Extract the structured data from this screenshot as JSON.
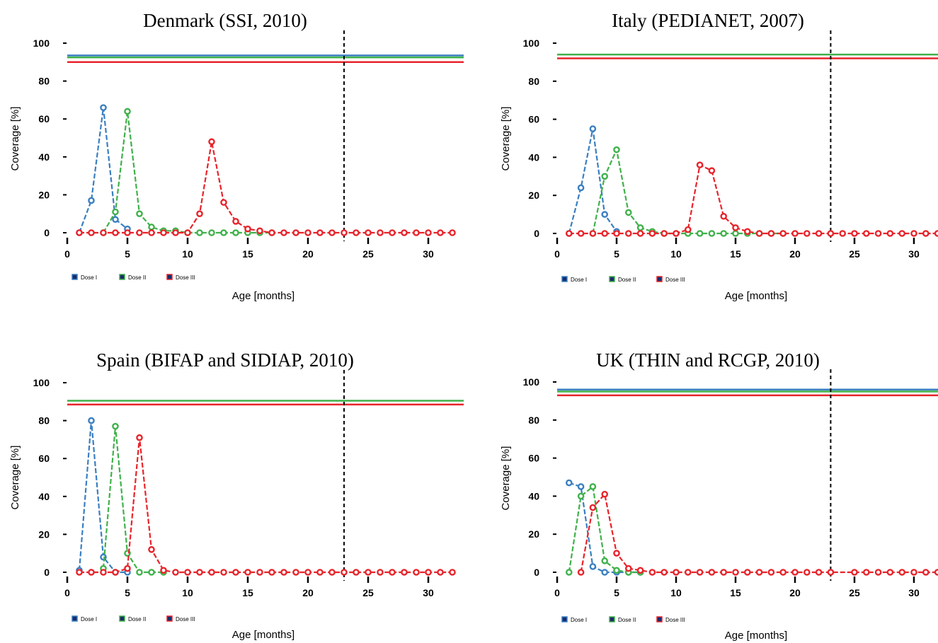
{
  "colors": {
    "dose1": "#3a7fc1",
    "dose2": "#3fb14a",
    "dose3": "#e8232a"
  },
  "chart_data": [
    {
      "type": "line",
      "title": "Denmark (SSI, 2010)",
      "xlabel": "Age [months]",
      "ylabel": "Coverage [%]",
      "xlim": [
        0,
        33
      ],
      "ylim": [
        0,
        100
      ],
      "xticks": [
        "0",
        "5",
        "10",
        "15",
        "20",
        "25",
        "30"
      ],
      "yticks": [
        "0",
        "20",
        "40",
        "60",
        "80",
        "100"
      ],
      "vline_x": 23,
      "target_lines": [
        {
          "name": "Dose I",
          "y": 93.5
        },
        {
          "name": "Dose II",
          "y": 92.5
        },
        {
          "name": "Dose III",
          "y": 90
        }
      ],
      "legend": [
        "Dose I",
        "Dose II",
        "Dose III"
      ],
      "series": [
        {
          "name": "Dose I",
          "points": [
            [
              1,
              0
            ],
            [
              2,
              17
            ],
            [
              3,
              66
            ],
            [
              4,
              7
            ],
            [
              5,
              2
            ]
          ]
        },
        {
          "name": "Dose II",
          "points": [
            [
              3,
              0
            ],
            [
              4,
              11
            ],
            [
              5,
              64
            ],
            [
              6,
              10
            ],
            [
              7,
              3
            ],
            [
              8,
              1
            ],
            [
              9,
              1
            ],
            [
              10,
              0
            ],
            [
              11,
              0
            ],
            [
              12,
              0
            ],
            [
              13,
              0
            ],
            [
              14,
              0
            ],
            [
              15,
              0
            ],
            [
              16,
              0
            ],
            [
              17,
              0
            ]
          ]
        },
        {
          "name": "Dose III",
          "points": [
            [
              1,
              0
            ],
            [
              2,
              0
            ],
            [
              3,
              0
            ],
            [
              4,
              0
            ],
            [
              5,
              0
            ],
            [
              6,
              0
            ],
            [
              7,
              0
            ],
            [
              8,
              0
            ],
            [
              9,
              0
            ],
            [
              10,
              0
            ],
            [
              11,
              10
            ],
            [
              12,
              48
            ],
            [
              13,
              16
            ],
            [
              14,
              6
            ],
            [
              15,
              2
            ],
            [
              16,
              1
            ],
            [
              17,
              0
            ],
            [
              18,
              0
            ],
            [
              19,
              0
            ],
            [
              20,
              0
            ],
            [
              21,
              0
            ],
            [
              22,
              0
            ],
            [
              23,
              0
            ],
            [
              24,
              0
            ],
            [
              25,
              0
            ],
            [
              26,
              0
            ],
            [
              27,
              0
            ],
            [
              28,
              0
            ],
            [
              29,
              0
            ],
            [
              30,
              0
            ],
            [
              31,
              0
            ],
            [
              32,
              0
            ]
          ]
        }
      ]
    },
    {
      "type": "line",
      "title": "Italy (PEDIANET, 2007)",
      "xlabel": "Age [months]",
      "ylabel": "Coverage [%]",
      "xlim": [
        0,
        32
      ],
      "ylim": [
        0,
        100
      ],
      "xticks": [
        "0",
        "5",
        "10",
        "15",
        "20",
        "25",
        "30"
      ],
      "yticks": [
        "0",
        "20",
        "40",
        "60",
        "80",
        "100"
      ],
      "vline_x": 23,
      "target_lines": [
        {
          "name": "Dose II",
          "y": 94
        },
        {
          "name": "Dose III",
          "y": 92
        }
      ],
      "legend": [
        "Dose I",
        "Dose II",
        "Dose III"
      ],
      "series": [
        {
          "name": "Dose I",
          "points": [
            [
              1,
              0
            ],
            [
              2,
              24
            ],
            [
              3,
              55
            ],
            [
              4,
              10
            ],
            [
              5,
              1
            ]
          ]
        },
        {
          "name": "Dose II",
          "points": [
            [
              3,
              0
            ],
            [
              4,
              30
            ],
            [
              5,
              44
            ],
            [
              6,
              11
            ],
            [
              7,
              3
            ],
            [
              8,
              1
            ],
            [
              9,
              0
            ],
            [
              10,
              0
            ],
            [
              11,
              0
            ],
            [
              12,
              0
            ],
            [
              13,
              0
            ],
            [
              14,
              0
            ],
            [
              15,
              0
            ],
            [
              16,
              0
            ],
            [
              17,
              0
            ],
            [
              18,
              0
            ],
            [
              19,
              0
            ]
          ]
        },
        {
          "name": "Dose III",
          "points": [
            [
              1,
              0
            ],
            [
              2,
              0
            ],
            [
              3,
              0
            ],
            [
              4,
              0
            ],
            [
              5,
              0
            ],
            [
              6,
              0
            ],
            [
              7,
              0
            ],
            [
              8,
              0
            ],
            [
              9,
              0
            ],
            [
              10,
              0
            ],
            [
              11,
              2
            ],
            [
              12,
              36
            ],
            [
              13,
              33
            ],
            [
              14,
              9
            ],
            [
              15,
              3
            ],
            [
              16,
              1
            ],
            [
              17,
              0
            ],
            [
              18,
              0
            ],
            [
              19,
              0
            ],
            [
              20,
              0
            ],
            [
              21,
              0
            ],
            [
              22,
              0
            ],
            [
              23,
              0
            ],
            [
              24,
              0
            ],
            [
              25,
              0
            ],
            [
              26,
              0
            ],
            [
              27,
              0
            ],
            [
              28,
              0
            ],
            [
              29,
              0
            ],
            [
              30,
              0
            ],
            [
              31,
              0
            ],
            [
              32,
              0
            ]
          ]
        }
      ]
    },
    {
      "type": "line",
      "title": "Spain (BIFAP and SIDIAP, 2010)",
      "xlabel": "Age [months]",
      "ylabel": "Coverage [%]",
      "xlim": [
        0,
        33
      ],
      "ylim": [
        0,
        100
      ],
      "xticks": [
        "0",
        "5",
        "10",
        "15",
        "20",
        "25",
        "30"
      ],
      "yticks": [
        "0",
        "20",
        "40",
        "60",
        "80",
        "100"
      ],
      "vline_x": 23,
      "target_lines": [
        {
          "name": "Dose II",
          "y": 90.5
        },
        {
          "name": "Dose III",
          "y": 88.5
        }
      ],
      "legend": [
        "Dose I",
        "Dose II",
        "Dose III"
      ],
      "series": [
        {
          "name": "Dose I",
          "points": [
            [
              1,
              1
            ],
            [
              2,
              80
            ],
            [
              3,
              8
            ],
            [
              4,
              0
            ],
            [
              5,
              0
            ]
          ]
        },
        {
          "name": "Dose II",
          "points": [
            [
              3,
              2
            ],
            [
              4,
              77
            ],
            [
              5,
              10
            ],
            [
              6,
              0
            ],
            [
              7,
              0
            ],
            [
              8,
              0
            ]
          ]
        },
        {
          "name": "Dose III",
          "points": [
            [
              1,
              0
            ],
            [
              2,
              0
            ],
            [
              3,
              0
            ],
            [
              4,
              0
            ],
            [
              5,
              2
            ],
            [
              6,
              71
            ],
            [
              7,
              12
            ],
            [
              8,
              1
            ],
            [
              9,
              0
            ],
            [
              10,
              0
            ],
            [
              11,
              0
            ],
            [
              12,
              0
            ],
            [
              13,
              0
            ],
            [
              14,
              0
            ],
            [
              15,
              0
            ],
            [
              16,
              0
            ],
            [
              17,
              0
            ],
            [
              18,
              0
            ],
            [
              19,
              0
            ],
            [
              20,
              0
            ],
            [
              21,
              0
            ],
            [
              22,
              0
            ],
            [
              23,
              0
            ],
            [
              24,
              0
            ],
            [
              25,
              0
            ],
            [
              26,
              0
            ],
            [
              27,
              0
            ],
            [
              28,
              0
            ],
            [
              29,
              0
            ],
            [
              30,
              0
            ],
            [
              31,
              0
            ],
            [
              32,
              0
            ]
          ]
        }
      ]
    },
    {
      "type": "line",
      "title": "UK (THIN and RCGP, 2010)",
      "xlabel": "Age [months]",
      "ylabel": "Coverage [%]",
      "xlim": [
        0,
        32
      ],
      "ylim": [
        0,
        100
      ],
      "xticks": [
        "0",
        "5",
        "10",
        "15",
        "20",
        "25",
        "30"
      ],
      "yticks": [
        "0",
        "20",
        "40",
        "60",
        "80",
        "100"
      ],
      "vline_x": 23,
      "target_lines": [
        {
          "name": "Dose I",
          "y": 96
        },
        {
          "name": "Dose II",
          "y": 95
        },
        {
          "name": "Dose III",
          "y": 93
        }
      ],
      "legend": [
        "Dose I",
        "Dose II",
        "Dose III"
      ],
      "series": [
        {
          "name": "Dose I",
          "points": [
            [
              1,
              47
            ],
            [
              2,
              45
            ],
            [
              3,
              3
            ],
            [
              4,
              0
            ],
            [
              5,
              0
            ],
            [
              6,
              0
            ],
            [
              7,
              0
            ]
          ]
        },
        {
          "name": "Dose II",
          "points": [
            [
              1,
              0
            ],
            [
              2,
              40
            ],
            [
              3,
              45
            ],
            [
              4,
              6
            ],
            [
              5,
              1
            ],
            [
              6,
              0
            ],
            [
              7,
              0
            ]
          ]
        },
        {
          "name": "Dose III",
          "points": [
            [
              2,
              0
            ],
            [
              3,
              34
            ],
            [
              4,
              41
            ],
            [
              5,
              10
            ],
            [
              6,
              2
            ],
            [
              7,
              1
            ],
            [
              8,
              0
            ],
            [
              9,
              0
            ],
            [
              10,
              0
            ],
            [
              11,
              0
            ],
            [
              12,
              0
            ],
            [
              13,
              0
            ],
            [
              14,
              0
            ],
            [
              15,
              0
            ],
            [
              16,
              0
            ],
            [
              17,
              0
            ],
            [
              18,
              0
            ],
            [
              19,
              0
            ],
            [
              20,
              0
            ],
            [
              21,
              0
            ],
            [
              22,
              0
            ],
            [
              23,
              0
            ],
            [
              25,
              0
            ],
            [
              26,
              0
            ],
            [
              27,
              0
            ],
            [
              28,
              0
            ],
            [
              29,
              0
            ],
            [
              30,
              0
            ],
            [
              31,
              0
            ],
            [
              32,
              0
            ]
          ]
        }
      ]
    }
  ]
}
